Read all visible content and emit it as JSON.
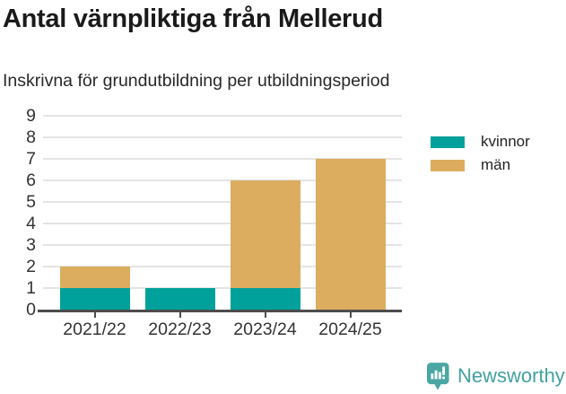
{
  "chart_data": {
    "type": "bar",
    "stacked": true,
    "title": "Antal värnpliktiga från Mellerud",
    "subtitle": "Inskrivna för grundutbildning per utbildningsperiod",
    "categories": [
      "2021/22",
      "2022/23",
      "2023/24",
      "2024/25"
    ],
    "series": [
      {
        "name": "kvinnor",
        "color": "#00a19a",
        "values": [
          1,
          1,
          1,
          0
        ]
      },
      {
        "name": "män",
        "color": "#dcad5e",
        "values": [
          1,
          0,
          5,
          7
        ]
      }
    ],
    "totals": [
      2,
      1,
      6,
      7
    ],
    "ylim": [
      0,
      9
    ],
    "yticks": [
      0,
      1,
      2,
      3,
      4,
      5,
      6,
      7,
      8,
      9
    ],
    "grid": true,
    "legend_position": "top-right"
  },
  "colors": {
    "axis": "#4d4d4d",
    "gridline": "#e4e4e4",
    "tick_text": "#333333",
    "title_text": "#1a1a1a",
    "brand_teal": "#42a1a1",
    "logo_teal": "#4aa6a3"
  },
  "footer": {
    "brand": "Newsworthy"
  }
}
